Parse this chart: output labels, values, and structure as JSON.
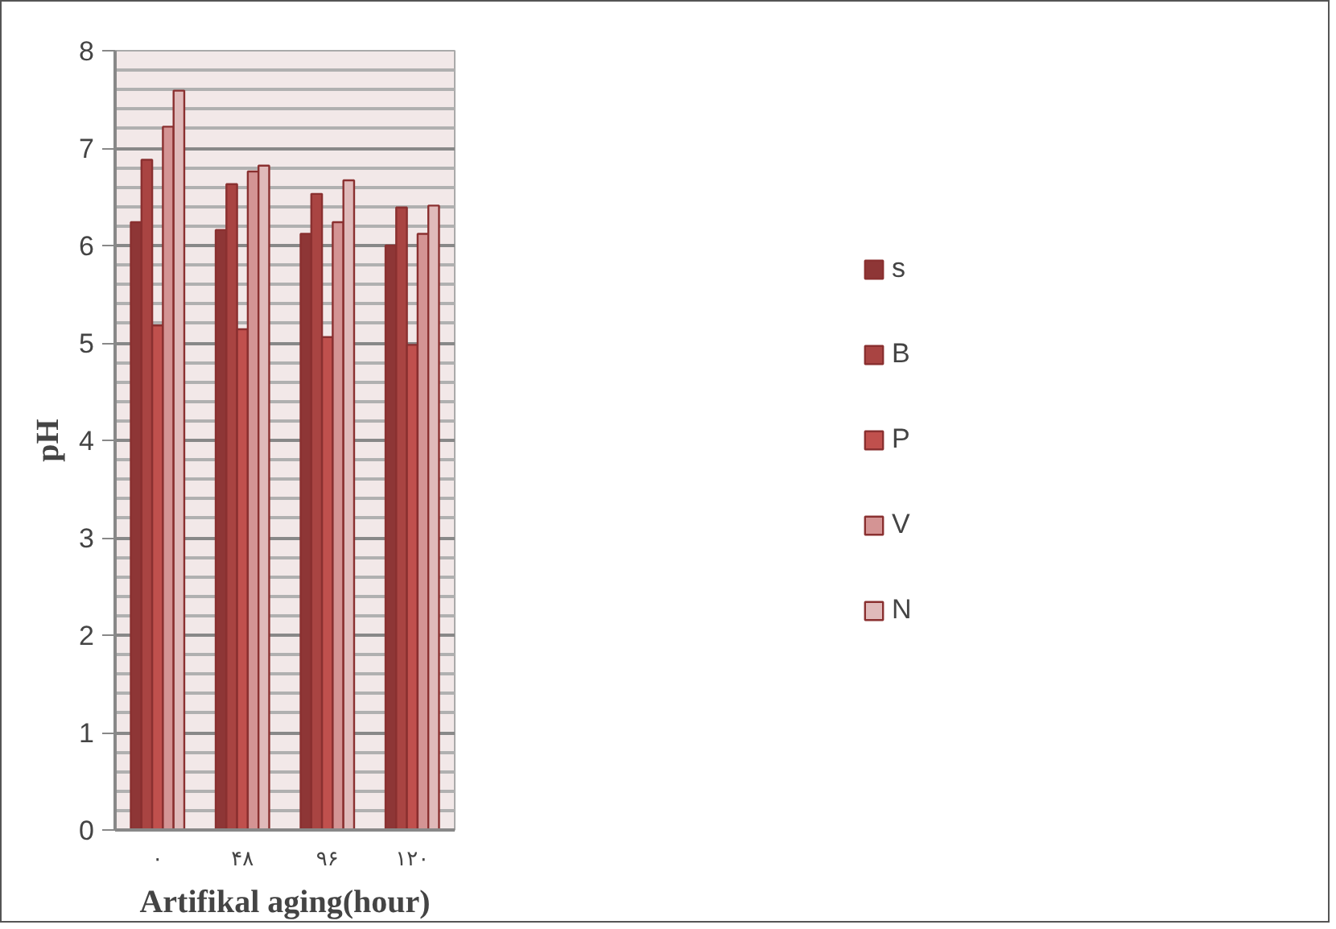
{
  "chart_data": {
    "type": "bar",
    "xlabel": "Artifikal aging(hour)",
    "ylabel": "pH",
    "categories": [
      "۰",
      "۴۸",
      "۹۶",
      "۱۲۰"
    ],
    "series": [
      {
        "name": "s",
        "color": "#8e3636",
        "values": [
          6.24,
          6.16,
          6.12,
          6.0
        ]
      },
      {
        "name": "B",
        "color": "#a94442",
        "values": [
          6.88,
          6.63,
          6.53,
          6.39
        ]
      },
      {
        "name": "P",
        "color": "#c0504d",
        "values": [
          5.18,
          5.14,
          5.06,
          4.98
        ]
      },
      {
        "name": "V",
        "color": "#d49494",
        "values": [
          7.22,
          6.76,
          6.24,
          6.12
        ]
      },
      {
        "name": "N",
        "color": "#e0baba",
        "values": [
          7.59,
          6.82,
          6.67,
          6.41
        ]
      }
    ],
    "ylim": [
      0,
      8
    ],
    "yticks": [
      0,
      1,
      2,
      3,
      4,
      5,
      6,
      7,
      8
    ],
    "grid": "y",
    "legend": "right"
  }
}
